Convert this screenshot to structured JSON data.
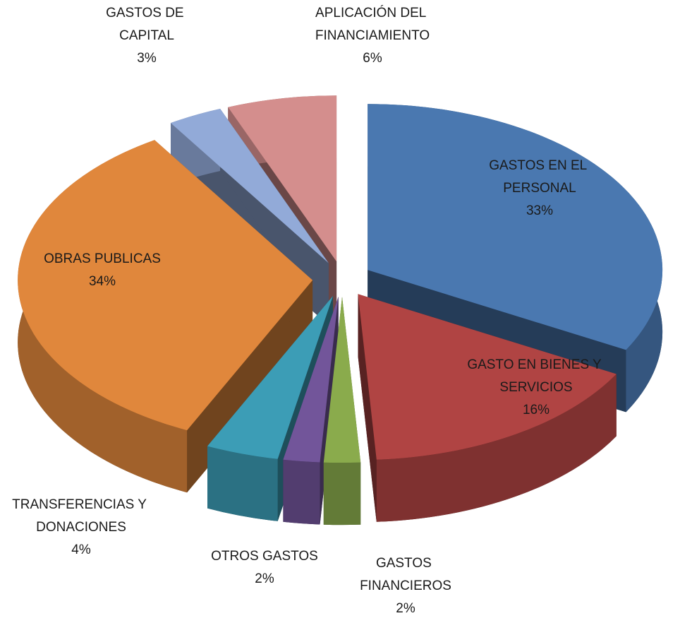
{
  "chart_data": {
    "type": "pie3d",
    "categories": [
      "GASTOS EN EL PERSONAL",
      "GASTO EN BIENES Y SERVICIOS",
      "GASTOS FINANCIEROS",
      "OTROS GASTOS",
      "TRANSFERENCIAS Y DONACIONES",
      "OBRAS PUBLICAS",
      "GASTOS DE CAPITAL",
      "APLICACIÓN DEL FINANCIAMIENTO"
    ],
    "values": [
      33,
      16,
      2,
      2,
      4,
      34,
      3,
      6
    ],
    "value_labels": [
      "33%",
      "16%",
      "2%",
      "2%",
      "4%",
      "34%",
      "3%",
      "6%"
    ],
    "colors": [
      "#4a78b0",
      "#b04443",
      "#8aab4c",
      "#72559a",
      "#3c9db6",
      "#e0873c",
      "#92aad8",
      "#d48e8d"
    ]
  }
}
